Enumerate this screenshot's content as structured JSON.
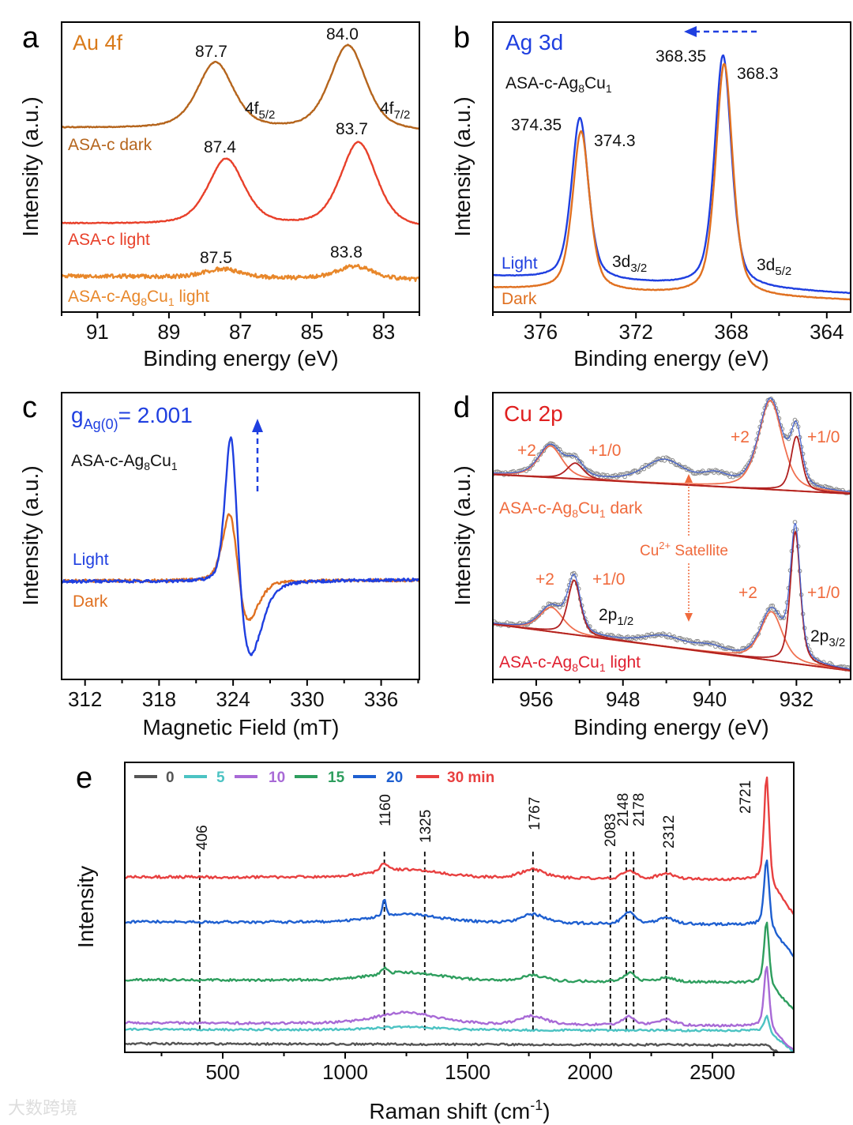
{
  "watermark": "大数跨境",
  "chart_data": [
    {
      "id": "a",
      "type": "line",
      "panel_label": "a",
      "title": "Au 4f",
      "xlabel": "Binding energy (eV)",
      "ylabel": "Intensity (a.u.)",
      "xlim": [
        92,
        82
      ],
      "ylim": [
        0,
        100
      ],
      "xticks": [
        91,
        89,
        87,
        85,
        83
      ],
      "minor_step": 1,
      "annotations": {
        "p1": "87.7",
        "p2": "84.0",
        "f52": "4f",
        "f52s": "5/2",
        "f72": "4f",
        "f72s": "7/2",
        "p3": "87.4",
        "p4": "83.7",
        "p5": "87.5",
        "p6": "83.8"
      },
      "series": [
        {
          "name": "ASA-c dark",
          "color": "#b5651d",
          "baseline": [
            63.5,
            62
          ],
          "noise": 0.15,
          "peaks": [
            {
              "x": 87.7,
              "h": 23,
              "w": 0.6
            },
            {
              "x": 84.0,
              "h": 29.5,
              "w": 0.6
            }
          ]
        },
        {
          "name": "ASA-c light",
          "color": "#e8402a",
          "baseline": [
            30.5,
            28.5
          ],
          "noise": 0.15,
          "peaks": [
            {
              "x": 87.4,
              "h": 23,
              "w": 0.6
            },
            {
              "x": 83.7,
              "h": 29.5,
              "w": 0.6
            }
          ]
        },
        {
          "name": "ASA-c-Ag8Cu1 light",
          "label_main": "ASA-c-Ag",
          "label_sub1": "8",
          "label_mid": "Cu",
          "label_sub2": "1",
          "label_end": " light",
          "color": "#e8872a",
          "baseline": [
            12.5,
            11
          ],
          "noise": 0.7,
          "peaks": [
            {
              "x": 87.5,
              "h": 3,
              "w": 0.6
            },
            {
              "x": 83.8,
              "h": 4.5,
              "w": 0.6
            }
          ]
        }
      ]
    },
    {
      "id": "b",
      "type": "line",
      "panel_label": "b",
      "title": "Ag 3d",
      "sample_main": "ASA-c-Ag",
      "sample_sub1": "8",
      "sample_mid": "Cu",
      "sample_sub2": "1",
      "xlabel": "Binding energy (eV)",
      "ylabel": "Intensity (a.u.)",
      "xlim": [
        378,
        363
      ],
      "ylim": [
        0,
        100
      ],
      "xticks": [
        376,
        372,
        368,
        364
      ],
      "minor_step": 2,
      "annotations": {
        "p1": "368.35",
        "p2": "368.3",
        "p3": "374.35",
        "p4": "374.3",
        "d32": "3d",
        "d32s": "3/2",
        "d52": "3d",
        "d52s": "5/2"
      },
      "series": [
        {
          "name": "Light",
          "color": "#1f3fe0",
          "baseline": [
            12.3,
            6.3
          ],
          "noise": 0.1,
          "peaks": [
            {
              "x": 374.35,
              "h": 56,
              "w": 0.42
            },
            {
              "x": 368.35,
              "h": 80,
              "w": 0.42
            }
          ]
        },
        {
          "name": "Dark",
          "color": "#e07020",
          "baseline": [
            8.2,
            4.1
          ],
          "noise": 0.1,
          "peaks": [
            {
              "x": 374.3,
              "h": 55,
              "w": 0.42
            },
            {
              "x": 368.3,
              "h": 80,
              "w": 0.42
            }
          ]
        }
      ]
    },
    {
      "id": "c",
      "type": "line",
      "panel_label": "c",
      "g_label": "g",
      "g_sub": "Ag(0)",
      "g_value": "= 2.001",
      "sample_main": "ASA-c-Ag",
      "sample_sub1": "8",
      "sample_mid": "Cu",
      "sample_sub2": "1",
      "xlabel": "Magnetic Field (mT)",
      "ylabel": "Intensity (a.u.)",
      "xlim": [
        310.1,
        339.1
      ],
      "ylim": [
        0,
        100
      ],
      "xticks": [
        312,
        318,
        324,
        330,
        336
      ],
      "minor_step": 3,
      "series": [
        {
          "name": "Dark",
          "color": "#e07020",
          "baseline": [
            34.4,
            34.6
          ],
          "noise": 0.5,
          "peaks": [
            {
              "x": 323.8,
              "h": 31,
              "w": 0.75
            },
            {
              "x": 325.0,
              "h": -19,
              "w": 1.1
            }
          ]
        },
        {
          "name": "Light",
          "color": "#1f3fe0",
          "baseline": [
            34.2,
            34.8
          ],
          "noise": 0.5,
          "peaks": [
            {
              "x": 323.85,
              "h": 61,
              "w": 0.6
            },
            {
              "x": 325.3,
              "h": -30,
              "w": 1.2
            }
          ]
        }
      ]
    },
    {
      "id": "d",
      "type": "line",
      "panel_label": "d",
      "title": "Cu 2p",
      "xlabel": "Binding energy (eV)",
      "ylabel": "Intensity (a.u.)",
      "xlim": [
        960,
        927
      ],
      "ylim": [
        0,
        100
      ],
      "xticks": [
        956,
        948,
        940,
        932
      ],
      "minor_step": 4,
      "annotations": {
        "plus2": "+2",
        "plus10": "+1/0",
        "satellite": "Cu",
        "satellite_sup": "2+",
        "satellite_end": " Satellite",
        "p12": "2p",
        "p12s": "1/2",
        "p32": "2p",
        "p32s": "3/2"
      },
      "series": [
        {
          "name": "ASA-c-Ag8Cu1 dark",
          "label_main": "ASA-c-Ag",
          "label_sub1": "8",
          "label_mid": "Cu",
          "label_sub2": "1",
          "label_end": " dark",
          "color": "#f06a3c",
          "baseline": [
            71.5,
            64.7
          ],
          "noise": 0.6,
          "peaks": [
            {
              "x": 954.7,
              "h": 11,
              "w": 1.3,
              "component": "+2"
            },
            {
              "x": 952.4,
              "h": 5.5,
              "w": 0.9,
              "component": "+1/0"
            },
            {
              "x": 944.2,
              "h": 8,
              "w": 2.2
            },
            {
              "x": 939.5,
              "h": 3.5,
              "w": 1.5
            },
            {
              "x": 934.4,
              "h": 31,
              "w": 1.3,
              "component": "+2"
            },
            {
              "x": 932.0,
              "h": 19,
              "w": 0.6,
              "component": "+1/0"
            }
          ]
        },
        {
          "name": "ASA-c-Ag8Cu1 light",
          "label_main": "ASA-c-Ag",
          "label_sub1": "8",
          "label_mid": "Cu",
          "label_sub2": "1",
          "label_end": " light",
          "color": "#e02030",
          "baseline": [
            19.3,
            3
          ],
          "noise": 0.6,
          "peaks": [
            {
              "x": 954.6,
              "h": 8.5,
              "w": 1.3,
              "component": "+2"
            },
            {
              "x": 952.5,
              "h": 19,
              "w": 0.7,
              "component": "+1/0"
            },
            {
              "x": 944.2,
              "h": 3.5,
              "w": 2.2
            },
            {
              "x": 940,
              "h": 2,
              "w": 1.5
            },
            {
              "x": 934.3,
              "h": 17,
              "w": 1.2,
              "component": "+2"
            },
            {
              "x": 932.1,
              "h": 46,
              "w": 0.55,
              "component": "+1/0"
            }
          ]
        }
      ]
    },
    {
      "id": "e",
      "type": "line",
      "panel_label": "e",
      "xlabel": "Raman shift (cm",
      "xlabel_sup": "-1",
      "xlabel_end": ")",
      "ylabel": "Intensity",
      "xlim": [
        100,
        2832
      ],
      "ylim": [
        0,
        100
      ],
      "xticks": [
        500,
        1000,
        1500,
        2000,
        2500
      ],
      "minor_step": 250,
      "reference_lines": [
        406,
        1160,
        1325,
        1767,
        2083,
        2148,
        2178,
        2312
      ],
      "peak_labels": [
        "406",
        "1160",
        "1325",
        "1767",
        "2083",
        "2148",
        "2178",
        "2312",
        "2721"
      ],
      "series": [
        {
          "name": "0",
          "color": "#555555",
          "baseline": [
            3,
            2.5
          ],
          "noise": 0.35,
          "peaks": []
        },
        {
          "name": "5",
          "color": "#4cc3c3",
          "baseline": [
            7.9,
            7.5
          ],
          "noise": 0.35,
          "peaks": [
            {
              "x": 1250,
              "h": 1,
              "w": 150
            },
            {
              "x": 2721,
              "h": 5,
              "w": 12
            }
          ]
        },
        {
          "name": "10",
          "color": "#a86ad6",
          "baseline": [
            10.2,
            9
          ],
          "noise": 0.4,
          "peaks": [
            {
              "x": 1250,
              "h": 4,
              "w": 150
            },
            {
              "x": 1767,
              "h": 3,
              "w": 60
            },
            {
              "x": 2160,
              "h": 3,
              "w": 30
            },
            {
              "x": 2312,
              "h": 2,
              "w": 40
            },
            {
              "x": 2721,
              "h": 21,
              "w": 12
            }
          ]
        },
        {
          "name": "15",
          "color": "#2e9e5e",
          "baseline": [
            25,
            24
          ],
          "noise": 0.4,
          "peaks": [
            {
              "x": 1160,
              "h": 2,
              "w": 15
            },
            {
              "x": 1250,
              "h": 3,
              "w": 170
            },
            {
              "x": 1767,
              "h": 2,
              "w": 60
            },
            {
              "x": 2160,
              "h": 3,
              "w": 30
            },
            {
              "x": 2312,
              "h": 1.5,
              "w": 40
            },
            {
              "x": 2721,
              "h": 21,
              "w": 12
            }
          ]
        },
        {
          "name": "20",
          "color": "#1e5fd0",
          "baseline": [
            45,
            44
          ],
          "noise": 0.45,
          "peaks": [
            {
              "x": 1160,
              "h": 6,
              "w": 8
            },
            {
              "x": 1250,
              "h": 3,
              "w": 170
            },
            {
              "x": 1767,
              "h": 3,
              "w": 60
            },
            {
              "x": 2160,
              "h": 4,
              "w": 30
            },
            {
              "x": 2312,
              "h": 2,
              "w": 40
            },
            {
              "x": 2721,
              "h": 23,
              "w": 12
            }
          ]
        },
        {
          "name": "30 min",
          "color": "#e84040",
          "baseline": [
            60.5,
            59.5
          ],
          "noise": 0.45,
          "peaks": [
            {
              "x": 1160,
              "h": 3,
              "w": 15
            },
            {
              "x": 1250,
              "h": 3,
              "w": 170
            },
            {
              "x": 1767,
              "h": 3,
              "w": 60
            },
            {
              "x": 2160,
              "h": 3,
              "w": 30
            },
            {
              "x": 2312,
              "h": 2,
              "w": 40
            },
            {
              "x": 2721,
              "h": 36,
              "w": 12
            }
          ]
        }
      ]
    }
  ]
}
